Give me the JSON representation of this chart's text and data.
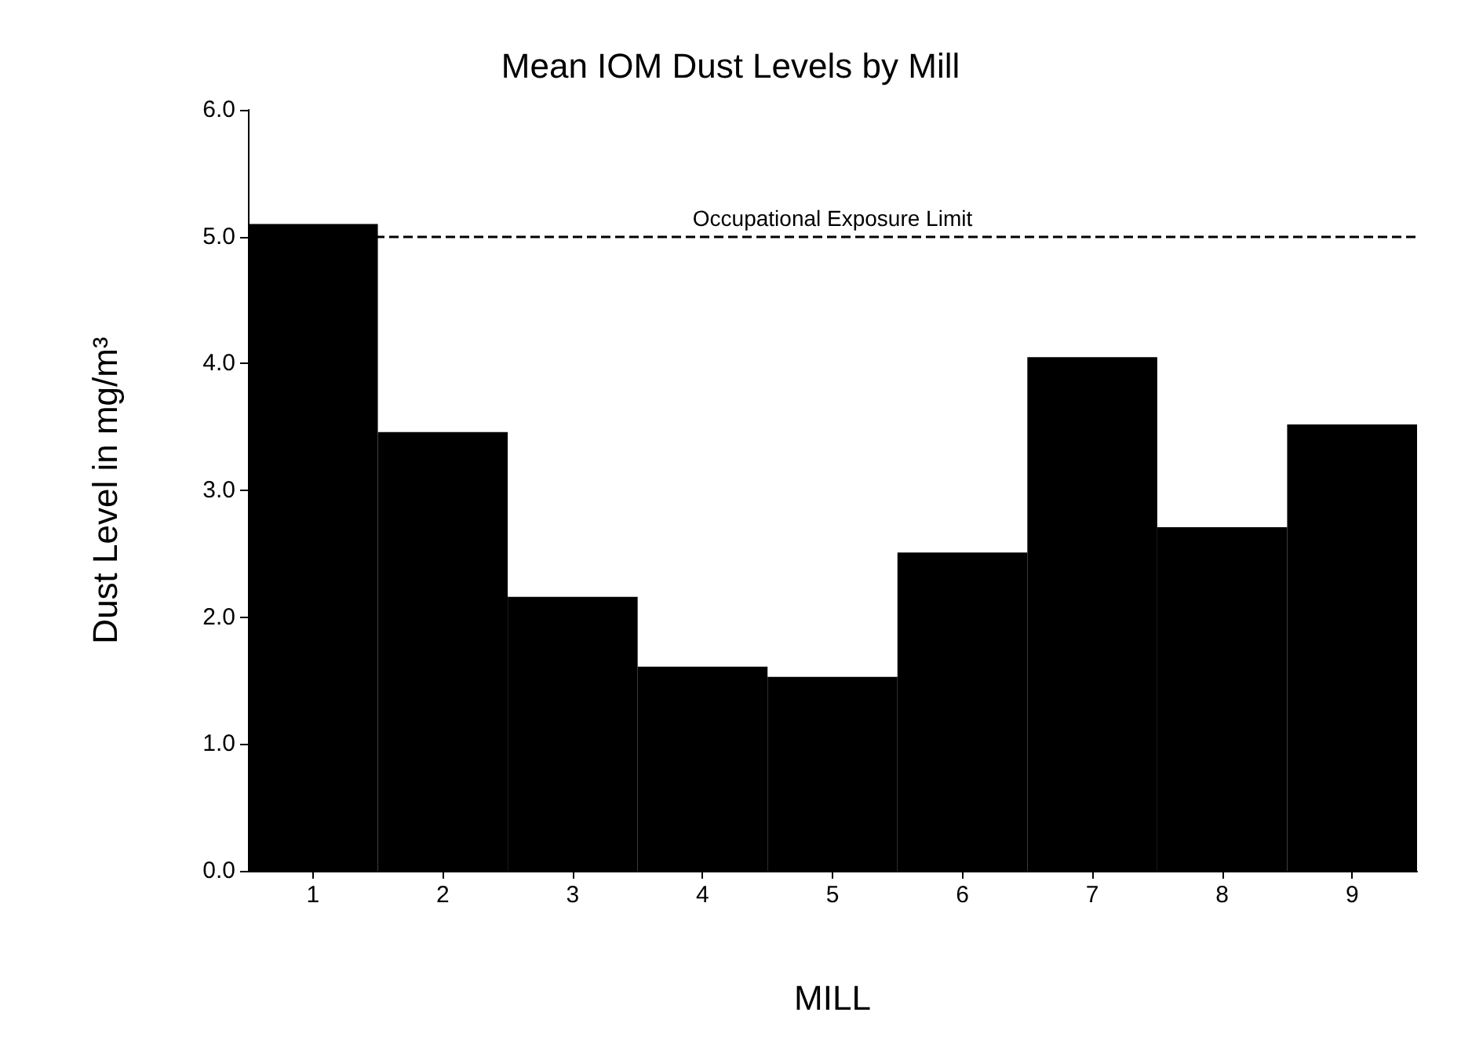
{
  "chart_data": {
    "type": "bar",
    "title": "Mean IOM Dust Levels by Mill",
    "xlabel": "MILL",
    "ylabel": "Dust Level in mg/m³",
    "categories": [
      "1",
      "2",
      "3",
      "4",
      "5",
      "6",
      "7",
      "8",
      "9"
    ],
    "values": [
      5.1,
      3.46,
      2.16,
      1.61,
      1.53,
      2.51,
      4.05,
      2.71,
      3.52
    ],
    "color": "#000000",
    "ylim": [
      0,
      6
    ],
    "yticks": [
      {
        "value": 0,
        "label": "0.0"
      },
      {
        "value": 1,
        "label": "1.0"
      },
      {
        "value": 2,
        "label": "2.0"
      },
      {
        "value": 3,
        "label": "3.0"
      },
      {
        "value": 4,
        "label": "4.0"
      },
      {
        "value": 5,
        "label": "5.0"
      },
      {
        "value": 6,
        "label": "6.0"
      }
    ],
    "grid": false,
    "ref_lines": [
      {
        "axis": "y",
        "value": 5,
        "label": "Occupational Exposure Limit",
        "color": "#000000",
        "line_style": "dashed"
      }
    ]
  }
}
